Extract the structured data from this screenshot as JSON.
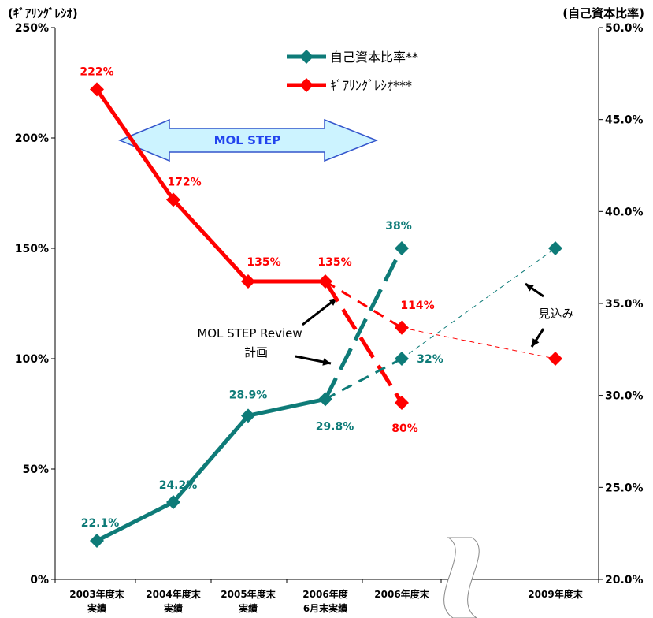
{
  "chart_data": {
    "type": "line",
    "left_axis": {
      "title": "(ｷﾞｱﾘﾝｸﾞﾚｼｵ)",
      "ylim": [
        0,
        250
      ],
      "ticks": [
        0,
        50,
        100,
        150,
        200,
        250
      ],
      "tick_labels": [
        "0%",
        "50%",
        "100%",
        "150%",
        "200%",
        "250%"
      ]
    },
    "right_axis": {
      "title": "(自己資本比率)",
      "ylim": [
        20,
        50
      ],
      "ticks": [
        20,
        25,
        30,
        35,
        40,
        45,
        50
      ],
      "tick_labels": [
        "20.0%",
        "25.0%",
        "30.0%",
        "35.0%",
        "40.0%",
        "45.0%",
        "50.0%"
      ]
    },
    "categories": [
      [
        "2003年度末",
        "実績"
      ],
      [
        "2004年度末",
        "実績"
      ],
      [
        "2005年度末",
        "実績"
      ],
      [
        "2006年度",
        "6月末実績"
      ],
      [
        "2006年度末",
        ""
      ],
      [
        "2009年度末",
        ""
      ]
    ],
    "legend": {
      "position": "top-center",
      "items": [
        {
          "name": "自己資本比率**",
          "color": "#0e7b78"
        },
        {
          "name": "ｷﾞｱﾘﾝｸﾞﾚｼｵ***",
          "color": "#ff0000"
        }
      ]
    },
    "series": [
      {
        "name": "ｷﾞｱﾘﾝｸﾞﾚｼｵ***",
        "axis": "left",
        "color": "#ff0000",
        "actual": [
          {
            "x": 0,
            "y": 222,
            "label": "222%"
          },
          {
            "x": 1,
            "y": 172,
            "label": "172%"
          },
          {
            "x": 2,
            "y": 135,
            "label": "135%"
          },
          {
            "x": 3,
            "y": 135,
            "label": "135%"
          }
        ],
        "plan": {
          "x": 4,
          "y": 80,
          "label": "80%"
        },
        "forecast": [
          {
            "x": 4,
            "y": 114,
            "label": "114%"
          },
          {
            "x": 5,
            "y": 100,
            "label": ""
          }
        ]
      },
      {
        "name": "自己資本比率**",
        "axis": "right",
        "color": "#0e7b78",
        "actual": [
          {
            "x": 0,
            "y": 22.1,
            "label": "22.1%"
          },
          {
            "x": 1,
            "y": 24.2,
            "label": "24.2%"
          },
          {
            "x": 2,
            "y": 28.9,
            "label": "28.9%"
          },
          {
            "x": 3,
            "y": 29.8,
            "label": "29.8%"
          }
        ],
        "plan": {
          "x": 4,
          "y": 38,
          "label": "38%"
        },
        "forecast": [
          {
            "x": 4,
            "y": 32,
            "label": "32%"
          },
          {
            "x": 5,
            "y": 38,
            "label": ""
          }
        ]
      }
    ],
    "annotations": {
      "step_arrow": "MOL STEP",
      "review_line1": "MOL STEP Review",
      "review_line2": "計画",
      "forecast": "見込み"
    },
    "grid": false
  }
}
